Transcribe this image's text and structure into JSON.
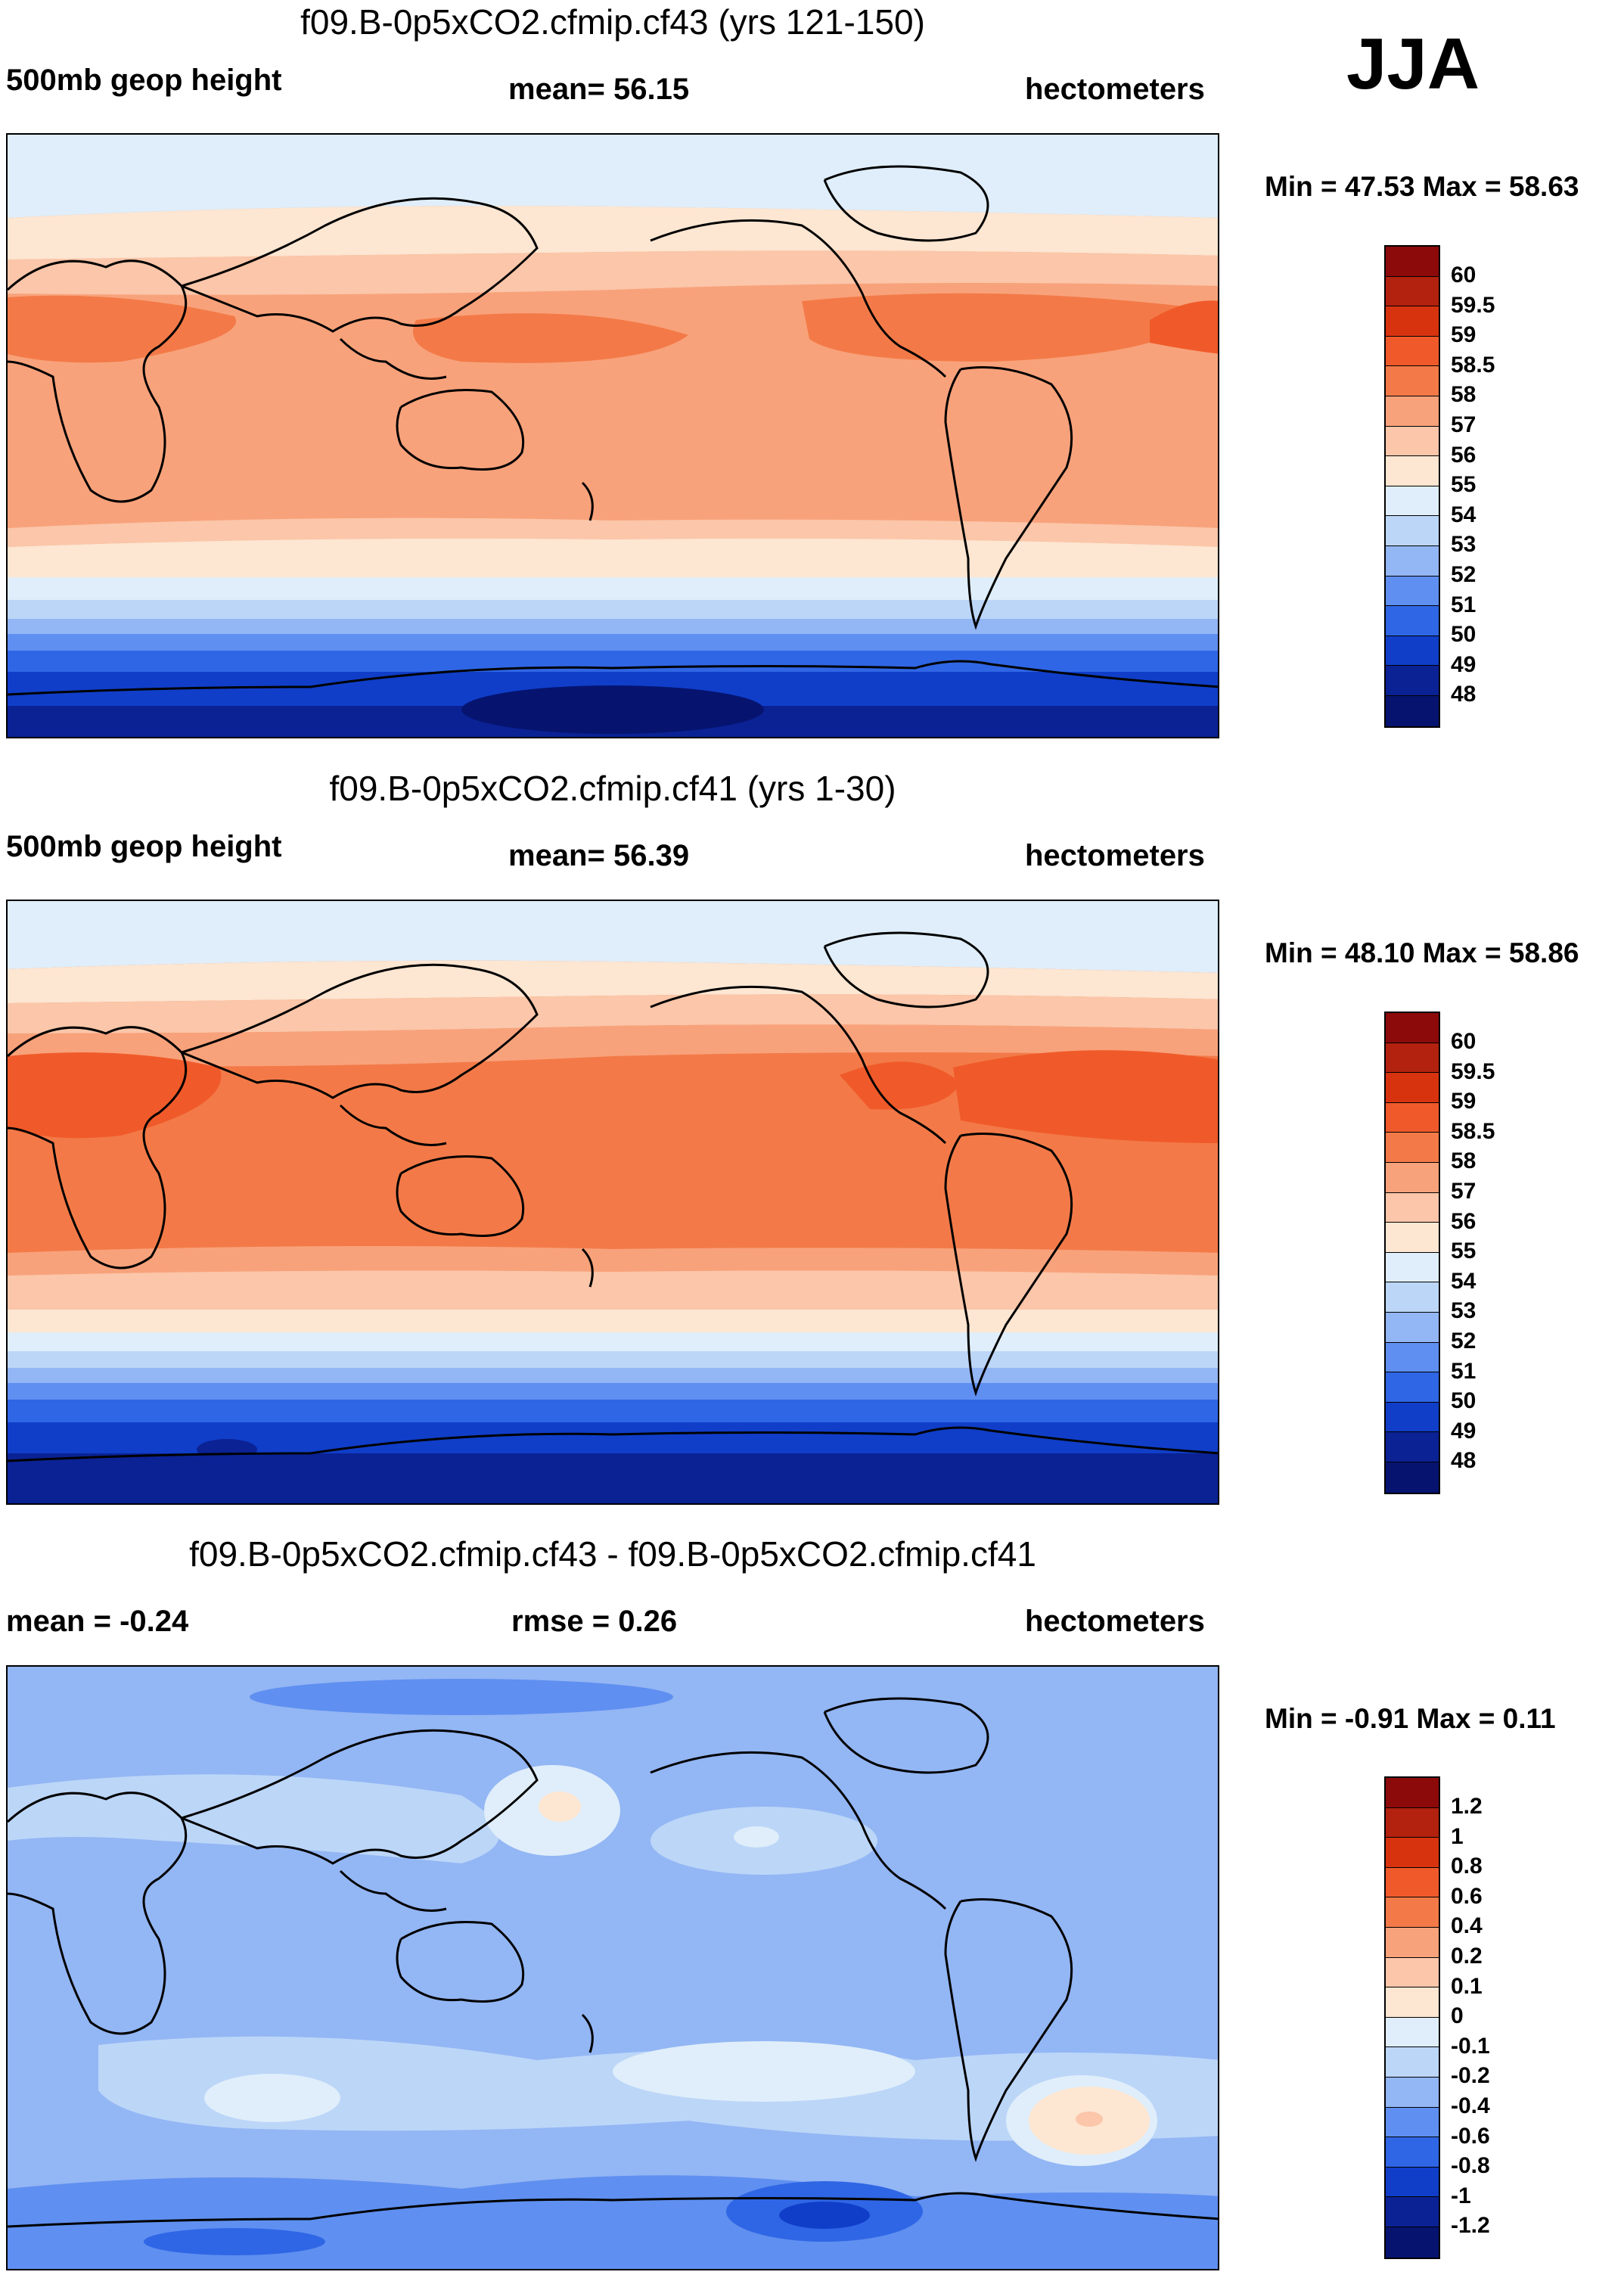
{
  "season": "JJA",
  "panels": [
    {
      "title": "f09.B-0p5xCO2.cfmip.cf43 (yrs 121-150)",
      "left_label": "500mb geop height",
      "stat_label": "mean=  56.15",
      "units": "hectometers",
      "minmax": "Min =  47.53 Max =  58.63",
      "colorbar_labels": [
        "60",
        "59.5",
        "59",
        "58.5",
        "58",
        "57",
        "56",
        "55",
        "54",
        "53",
        "52",
        "51",
        "50",
        "49",
        "48"
      ],
      "colors": [
        "#8c0a0a",
        "#b3210f",
        "#d8330f",
        "#f05a2a",
        "#f37a48",
        "#f8a27b",
        "#fbc6a9",
        "#fde6d2",
        "#dfeefa",
        "#bcd6f8",
        "#93b6f4",
        "#5f8ff0",
        "#2f66e5",
        "#103ec9",
        "#0a2294",
        "#061470"
      ]
    },
    {
      "title": "f09.B-0p5xCO2.cfmip.cf41 (yrs 1-30)",
      "left_label": "500mb geop height",
      "stat_label": "mean=  56.39",
      "units": "hectometers",
      "minmax": "Min =  48.10 Max =  58.86",
      "colorbar_labels": [
        "60",
        "59.5",
        "59",
        "58.5",
        "58",
        "57",
        "56",
        "55",
        "54",
        "53",
        "52",
        "51",
        "50",
        "49",
        "48"
      ],
      "colors": [
        "#8c0a0a",
        "#b3210f",
        "#d8330f",
        "#f05a2a",
        "#f37a48",
        "#f8a27b",
        "#fbc6a9",
        "#fde6d2",
        "#dfeefa",
        "#bcd6f8",
        "#93b6f4",
        "#5f8ff0",
        "#2f66e5",
        "#103ec9",
        "#0a2294",
        "#061470"
      ]
    },
    {
      "title": "f09.B-0p5xCO2.cfmip.cf43 - f09.B-0p5xCO2.cfmip.cf41",
      "left_label": "mean =  -0.24",
      "stat_label": "rmse =   0.26",
      "units": "hectometers",
      "minmax": "Min =  -0.91 Max =   0.11",
      "colorbar_labels": [
        "1.2",
        "1",
        "0.8",
        "0.6",
        "0.4",
        "0.2",
        "0.1",
        "0",
        "-0.1",
        "-0.2",
        "-0.4",
        "-0.6",
        "-0.8",
        "-1",
        "-1.2"
      ],
      "colors": [
        "#8c0a0a",
        "#b3210f",
        "#d8330f",
        "#f05a2a",
        "#f37a48",
        "#f8a27b",
        "#fbc6a9",
        "#fde6d2",
        "#dfeefa",
        "#bcd6f8",
        "#93b6f4",
        "#5f8ff0",
        "#2f66e5",
        "#103ec9",
        "#0a2294",
        "#061470"
      ]
    }
  ]
}
